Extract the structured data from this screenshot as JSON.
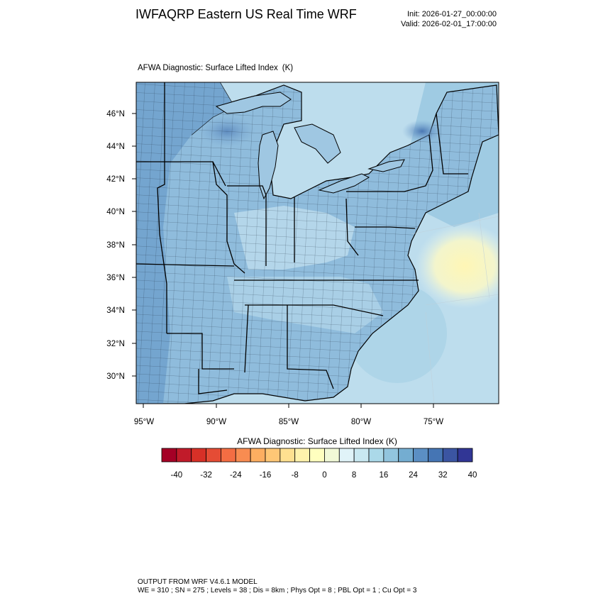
{
  "header": {
    "title": "IWFAQRP Eastern US Real Time WRF",
    "init": "Init: 2026-01-27_00:00:00",
    "valid": "Valid: 2026-02-01_17:00:00"
  },
  "plot": {
    "field_title": "AFWA Diagnostic: Surface Lifted Index",
    "units": "(K)",
    "lat_labels": [
      "46°N",
      "44°N",
      "42°N",
      "40°N",
      "38°N",
      "36°N",
      "34°N",
      "32°N",
      "30°N"
    ],
    "lon_labels": [
      "95°W",
      "90°W",
      "85°W",
      "80°W",
      "75°W"
    ]
  },
  "colorbar": {
    "title": "AFWA Diagnostic: Surface Lifted Index  (K)",
    "tick_labels": [
      "-40",
      "-32",
      "-24",
      "-16",
      "-8",
      "0",
      "8",
      "16",
      "24",
      "32",
      "40"
    ],
    "colors": [
      "#a50026",
      "#c11b2a",
      "#d73027",
      "#e54c35",
      "#f46d43",
      "#f88c51",
      "#fdae61",
      "#fec776",
      "#fee090",
      "#fff2ac",
      "#ffffbf",
      "#f1f9d7",
      "#e0f3f8",
      "#c9e8f1",
      "#abd9e9",
      "#92c5de",
      "#74add1",
      "#5b8fc4",
      "#4575b4",
      "#3b55a2",
      "#313695"
    ]
  },
  "footer": {
    "line1": "OUTPUT FROM WRF V4.6.1 MODEL",
    "line2": "WE = 310 ; SN = 275 ; Levels = 38 ; Dis = 8km ; Phys Opt = 8 ; PBL Opt = 1 ; Cu Opt = 3"
  }
}
